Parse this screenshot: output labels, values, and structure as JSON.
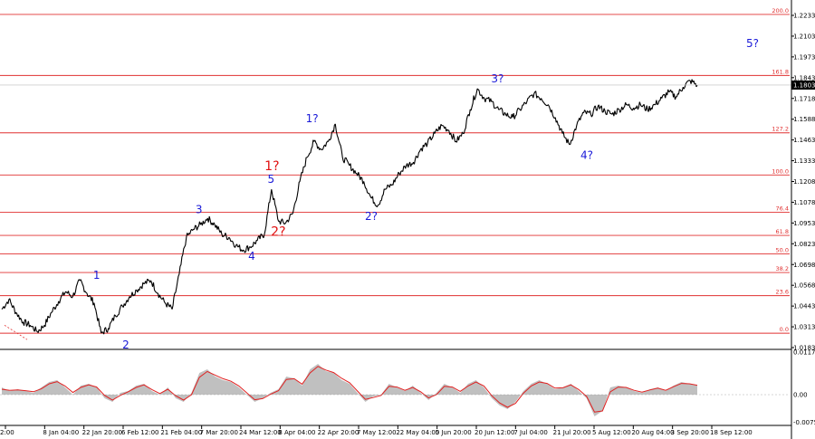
{
  "chart_data": [
    {
      "type": "line",
      "title": "",
      "price_axis_labels": [
        "1.2233",
        "1.2103",
        "1.1973",
        "1.1843",
        "1.1718",
        "1.1588",
        "1.1463",
        "1.1333",
        "1.1208",
        "1.1078",
        "1.0953",
        "1.0823",
        "1.0698",
        "1.0568",
        "1.0443",
        "1.0313",
        "1.0183"
      ],
      "current_price": "1.1803",
      "time_axis_labels": [
        "2:00",
        "8 Jan 04:00",
        "22 Jan 20:00",
        "6 Feb 12:00",
        "21 Feb 04:00",
        "7 Mar 20:00",
        "24 Mar 12:00",
        "8 Apr 04:00",
        "22 Apr 20:00",
        "7 May 12:00",
        "22 May 04:00",
        "5 Jun 20:00",
        "20 Jun 12:00",
        "7 Jul 04:00",
        "21 Jul 20:00",
        "5 Aug 12:00",
        "20 Aug 04:00",
        "3 Sep 20:00",
        "18 Sep 12:00"
      ],
      "ylim": [
        1.016,
        1.229
      ],
      "fib_levels": [
        {
          "label": "200.0",
          "price": 1.2245
        },
        {
          "label": "161.8",
          "price": 1.1863
        },
        {
          "label": "127.2",
          "price": 1.1504
        },
        {
          "label": "100.0",
          "price": 1.124
        },
        {
          "label": "76.4",
          "price": 1.1007
        },
        {
          "label": "61.8",
          "price": 1.0862
        },
        {
          "label": "50.0",
          "price": 1.0746
        },
        {
          "label": "38.2",
          "price": 1.063
        },
        {
          "label": "23.6",
          "price": 1.0485
        },
        {
          "label": "0.0",
          "price": 1.025
        }
      ],
      "series": [
        {
          "values": [
            1.04,
            1.046,
            1.038,
            1.032,
            1.03,
            1.026,
            1.03,
            1.038,
            1.045,
            1.051,
            1.048,
            1.058,
            1.05,
            1.044,
            1.025,
            1.028,
            1.036,
            1.042,
            1.048,
            1.052,
            1.056,
            1.058,
            1.05,
            1.044,
            1.04,
            1.062,
            1.085,
            1.09,
            1.093,
            1.097,
            1.093,
            1.087,
            1.085,
            1.08,
            1.077,
            1.079,
            1.083,
            1.087,
            1.115,
            1.095,
            1.094,
            1.1,
            1.12,
            1.135,
            1.145,
            1.14,
            1.145,
            1.156,
            1.135,
            1.13,
            1.125,
            1.12,
            1.11,
            1.105,
            1.115,
            1.118,
            1.125,
            1.13,
            1.132,
            1.14,
            1.144,
            1.15,
            1.155,
            1.152,
            1.145,
            1.15,
            1.165,
            1.178,
            1.172,
            1.17,
            1.165,
            1.162,
            1.16,
            1.165,
            1.17,
            1.175,
            1.172,
            1.168,
            1.16,
            1.15,
            1.143,
            1.155,
            1.163,
            1.162,
            1.167,
            1.164,
            1.162,
            1.165,
            1.168,
            1.166,
            1.168,
            1.165,
            1.168,
            1.172,
            1.176,
            1.173,
            1.179,
            1.183,
            1.1803
          ]
        }
      ]
    },
    {
      "type": "area",
      "title": "",
      "oscillator_axis_labels": [
        "0.01174",
        "0.00",
        "-0.00759"
      ],
      "ylim": [
        -0.008,
        0.012
      ],
      "series": [
        {
          "values": [
            0.002,
            0.001,
            0.0015,
            0.001,
            0.0005,
            0.002,
            0.0035,
            0.004,
            0.002,
            0.0,
            0.0025,
            0.003,
            0.002,
            -0.001,
            -0.002,
            0.0005,
            0.001,
            0.0025,
            0.003,
            0.001,
            0.0,
            0.002,
            -0.001,
            -0.002,
            0.0005,
            0.006,
            0.007,
            0.005,
            0.004,
            0.0035,
            0.002,
            0.0,
            -0.002,
            -0.001,
            0.0005,
            0.0015,
            0.005,
            0.0045,
            0.0025,
            0.007,
            0.0085,
            0.0065,
            0.006,
            0.004,
            0.003,
            0.0005,
            -0.002,
            -0.0005,
            0.0,
            0.003,
            0.002,
            0.001,
            0.0025,
            0.0005,
            -0.0015,
            0.0005,
            0.003,
            0.002,
            0.0005,
            0.003,
            0.004,
            0.002,
            -0.001,
            -0.003,
            -0.004,
            -0.002,
            0.001,
            0.003,
            0.004,
            0.003,
            0.0015,
            0.002,
            0.003,
            0.001,
            -0.001,
            -0.006,
            -0.0045,
            0.002,
            0.0025,
            0.002,
            0.001,
            0.0005,
            0.0015,
            0.002,
            0.001,
            0.0025,
            0.0035,
            0.003,
            0.0025
          ]
        },
        {
          "values": [
            0.0015,
            0.0012,
            0.0013,
            0.0011,
            0.0008,
            0.0016,
            0.003,
            0.0036,
            0.0024,
            0.0006,
            0.002,
            0.0027,
            0.0021,
            -0.0002,
            -0.0015,
            -0.0002,
            0.0008,
            0.002,
            0.0027,
            0.0014,
            0.0003,
            0.0015,
            -0.0003,
            -0.0015,
            0.0,
            0.0048,
            0.0064,
            0.0054,
            0.0044,
            0.0037,
            0.0024,
            0.0005,
            -0.0014,
            -0.0011,
            0.0001,
            0.0011,
            0.0042,
            0.0044,
            0.0029,
            0.006,
            0.0078,
            0.0068,
            0.0061,
            0.0045,
            0.0033,
            0.001,
            -0.0013,
            -0.0008,
            -0.0002,
            0.0023,
            0.0021,
            0.0012,
            0.002,
            0.0008,
            -0.0009,
            0.0,
            0.0023,
            0.0021,
            0.0009,
            0.0024,
            0.0035,
            0.0024,
            -0.0003,
            -0.0023,
            -0.0035,
            -0.0024,
            0.0004,
            0.0024,
            0.0035,
            0.0031,
            0.0018,
            0.0019,
            0.0027,
            0.0014,
            -0.0005,
            -0.0048,
            -0.0045,
            0.0008,
            0.0021,
            0.002,
            0.0012,
            0.0007,
            0.0013,
            0.0018,
            0.0012,
            0.0022,
            0.0031,
            0.003,
            0.0026
          ]
        }
      ]
    }
  ],
  "wave_labels": [
    {
      "text": "1",
      "color": "blue",
      "x": "22 Jan 20:00",
      "price": 1.059
    },
    {
      "text": "2",
      "color": "blue",
      "x": "6 Feb 12:00",
      "price": 1.0155
    },
    {
      "text": "3",
      "color": "blue",
      "x": "7 Mar 20:00",
      "price": 1.1
    },
    {
      "text": "4",
      "color": "blue",
      "x": "24 Mar 12:00",
      "price": 1.071
    },
    {
      "text": "5",
      "color": "blue",
      "x": "8 Apr 04:00",
      "price": 1.119
    },
    {
      "text": "1?",
      "color": "red",
      "x": "8 Apr 04:00",
      "price": 1.127
    },
    {
      "text": "2?",
      "color": "red",
      "x": "8 Apr 04:00",
      "price": 1.086
    },
    {
      "text": "1?",
      "color": "blue",
      "x": "22 Apr 20:00",
      "price": 1.157
    },
    {
      "text": "2?",
      "color": "blue",
      "x": "7 May 12:00",
      "price": 1.096
    },
    {
      "text": "3?",
      "color": "blue",
      "x": "7 Jul 04:00",
      "price": 1.182
    },
    {
      "text": "4?",
      "color": "blue",
      "x": "5 Aug 12:00",
      "price": 1.134
    },
    {
      "text": "5?",
      "color": "blue",
      "x": "18 Sep 12:00",
      "price": 1.204
    }
  ]
}
